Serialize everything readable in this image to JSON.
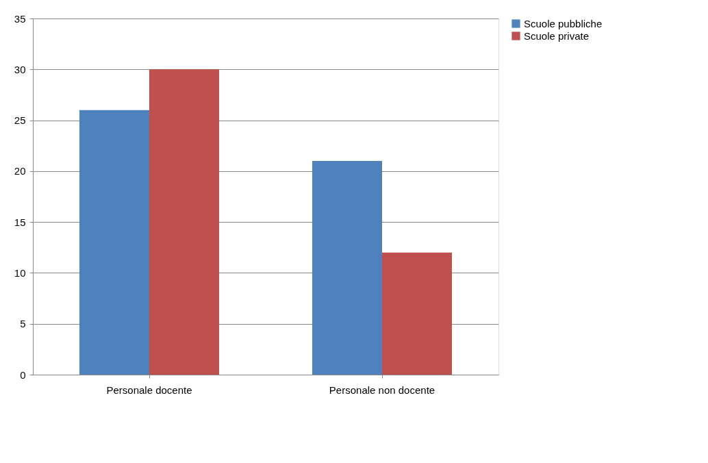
{
  "chart_data": {
    "type": "bar",
    "categories": [
      "Personale docente",
      "Personale non docente"
    ],
    "series": [
      {
        "name": "Scuole pubbliche",
        "color": "#4f81bd",
        "values": [
          26,
          21
        ]
      },
      {
        "name": "Scuole private",
        "color": "#c0504d",
        "values": [
          30,
          12
        ]
      }
    ],
    "ylim": [
      0,
      35
    ],
    "yticks": [
      0,
      5,
      10,
      15,
      20,
      25,
      30,
      35
    ],
    "grid": "y",
    "legend": "right"
  }
}
